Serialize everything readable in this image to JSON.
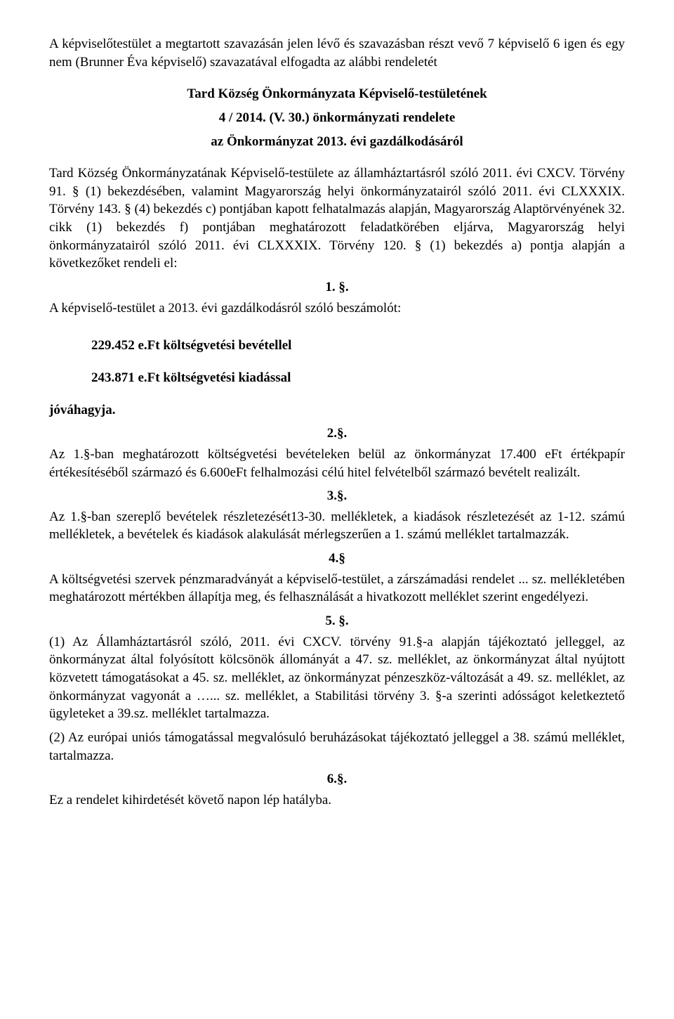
{
  "intro": "A képviselőtestület a megtartott szavazásán jelen lévő és szavazásban részt vevő  7 képviselő 6 igen és egy nem (Brunner Éva képviselő) szavazatával elfogadta az alábbi rendeletét",
  "title": {
    "line1": "Tard Község Önkormányzata Képviselő-testületének",
    "line2": "4 / 2014. (V. 30.) önkormányzati rendelete",
    "line3": "az Önkormányzat 2013. évi gazdálkodásáról"
  },
  "preamble": "Tard Község Önkormányzatának Képviselő-testülete az államháztartásról szóló 2011. évi CXCV. Törvény 91. § (1) bekezdésében, valamint Magyarország helyi önkormányzatairól szóló 2011. évi CLXXXIX. Törvény 143. § (4) bekezdés c) pontjában kapott felhatalmazás alapján, Magyarország Alaptörvényének 32. cikk (1) bekezdés f) pontjában meghatározott feladatkörében eljárva, Magyarország helyi önkormányzatairól szóló 2011. évi CLXXXIX. Törvény 120. § (1) bekezdés a) pontja alapján a következőket rendeli el:",
  "s1": {
    "num": "1. §.",
    "line": "A képviselő-testület a 2013. évi gazdálkodásról szóló beszámolót:",
    "revenue": "229.452 e.Ft költségvetési bevétellel",
    "expense": "243.871 e.Ft költségvetési kiadással",
    "approve": "jóváhagyja."
  },
  "s2": {
    "num": "2.§.",
    "text": "Az 1.§-ban meghatározott költségvetési bevételeken belül az önkormányzat 17.400 eFt értékpapír értékesítéséből származó és 6.600eFt felhalmozási célú hitel felvételből származó bevételt realizált."
  },
  "s3": {
    "num": "3.§.",
    "text": "Az 1.§-ban szereplő bevételek részletezését13-30. mellékletek, a kiadások részletezését az 1-12. számú mellékletek, a bevételek és kiadások alakulását mérlegszerűen a 1. számú melléklet tartalmazzák."
  },
  "s4": {
    "num": "4.§",
    "text": "A költségvetési szervek pénzmaradványát a képviselő-testület, a zárszámadási rendelet ... sz. mellékletében meghatározott mértékben állapítja meg, és felhasználását a hivatkozott melléklet szerint engedélyezi."
  },
  "s5": {
    "num": "5. §.",
    "p1": "(1) Az Államháztartásról szóló, 2011. évi CXCV. törvény 91.§-a alapján tájékoztató jelleggel, az önkormányzat által folyósított kölcsönök állományát a 47. sz. melléklet, az önkormányzat által nyújtott közvetett támogatásokat a 45. sz. melléklet, az önkormányzat pénzeszköz-változását a 49. sz. melléklet, az önkormányzat vagyonát a …... sz. melléklet, a Stabilitási törvény 3. §-a szerinti adósságot keletkeztető ügyleteket a 39.sz. melléklet tartalmazza.",
    "p2": "(2) Az európai uniós támogatással megvalósuló beruházásokat tájékoztató jelleggel a 38. számú melléklet, tartalmazza."
  },
  "s6": {
    "num": "6.§.",
    "text": "Ez a rendelet kihirdetését követő napon lép hatályba."
  }
}
